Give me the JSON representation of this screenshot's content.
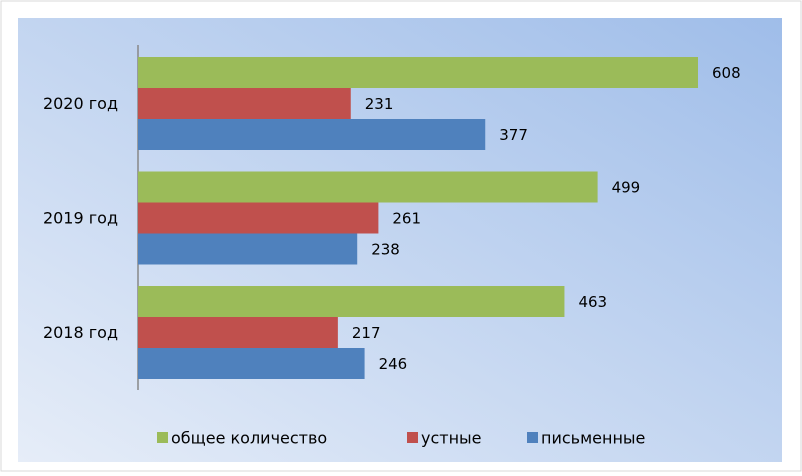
{
  "chart_data": {
    "type": "bar",
    "orientation": "horizontal",
    "categories": [
      "2020 год",
      "2019 год",
      "2018 год"
    ],
    "series": [
      {
        "name": "общее количество",
        "color": "#9bbb59",
        "values": [
          608,
          499,
          463
        ]
      },
      {
        "name": "устные",
        "color": "#c0504d",
        "values": [
          231,
          261,
          217
        ]
      },
      {
        "name": "письменные",
        "color": "#4f81bd",
        "values": [
          377,
          238,
          246
        ]
      }
    ],
    "legend": "bottom"
  }
}
